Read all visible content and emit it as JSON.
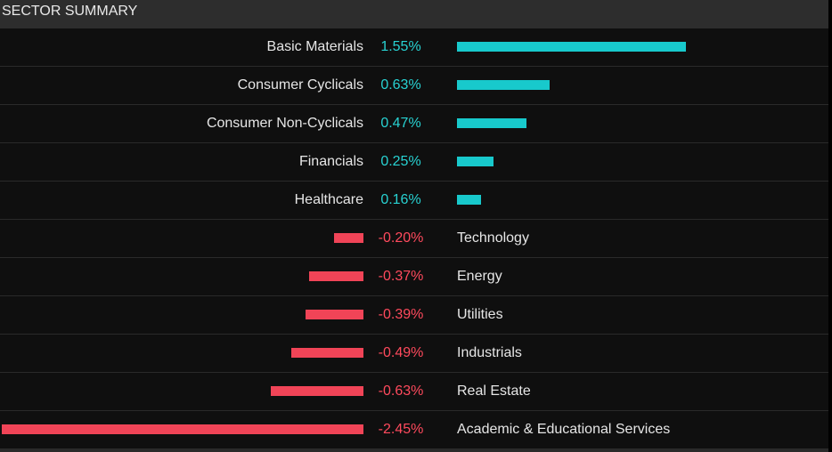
{
  "header": {
    "title": "SECTOR SUMMARY"
  },
  "colors": {
    "positive": "#18c9cc",
    "negative": "#f04457",
    "background": "#0f0f0f",
    "header_bg": "#2d2d2d"
  },
  "chart_data": {
    "type": "bar",
    "orientation": "horizontal-diverging",
    "title": "SECTOR SUMMARY",
    "unit": "%",
    "categories": [
      "Basic Materials",
      "Consumer Cyclicals",
      "Consumer Non-Cyclicals",
      "Financials",
      "Healthcare",
      "Technology",
      "Energy",
      "Utilities",
      "Industrials",
      "Real Estate",
      "Academic & Educational Services"
    ],
    "values": [
      1.55,
      0.63,
      0.47,
      0.25,
      0.16,
      -0.2,
      -0.37,
      -0.39,
      -0.49,
      -0.63,
      -2.45
    ],
    "labels": [
      "1.55%",
      "0.63%",
      "0.47%",
      "0.25%",
      "0.16%",
      "-0.20%",
      "-0.37%",
      "-0.39%",
      "-0.49%",
      "-0.63%",
      "-2.45%"
    ]
  }
}
